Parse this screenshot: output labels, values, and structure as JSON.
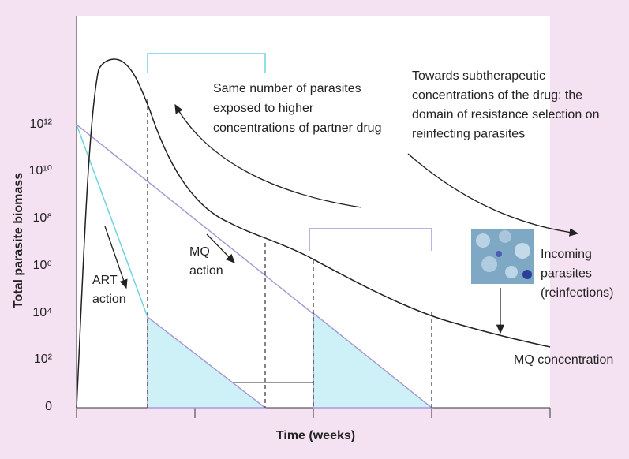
{
  "axes": {
    "y_title": "Total parasite biomass",
    "x_title": "Time (weeks)",
    "y_tick_labels": [
      "10¹²",
      "10¹⁰",
      "10⁸",
      "10⁶",
      "10⁴",
      "10²",
      "0"
    ]
  },
  "annotations": {
    "same_number": [
      "Same number of parasites",
      "exposed to higher",
      "concentrations of partner drug"
    ],
    "towards": [
      "Towards subtherapeutic",
      "concentrations of the drug: the",
      "domain of resistance selection on",
      "reinfecting parasites"
    ],
    "incoming": [
      "Incoming",
      "parasites",
      "(reinfections)"
    ],
    "mq_concentration": "MQ concentration",
    "mq_action": [
      "MQ",
      "action"
    ],
    "art_action": [
      "ART",
      "action"
    ]
  }
}
